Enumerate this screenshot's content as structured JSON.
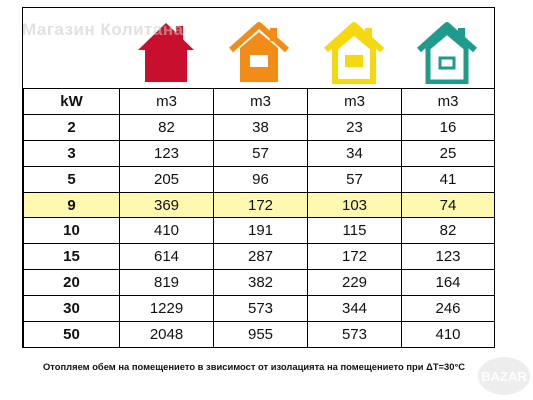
{
  "watermark": "Магазин Колитана",
  "houses": [
    {
      "name": "house-red-icon",
      "color": "#c8102e"
    },
    {
      "name": "house-orange-icon",
      "color": "#f28c18"
    },
    {
      "name": "house-yellow-icon",
      "color": "#f5d80f"
    },
    {
      "name": "house-teal-icon",
      "color": "#1e9b8a"
    }
  ],
  "table": {
    "headers": [
      "kW",
      "m3",
      "m3",
      "m3",
      "m3"
    ],
    "rows": [
      [
        "2",
        "82",
        "38",
        "23",
        "16"
      ],
      [
        "3",
        "123",
        "57",
        "34",
        "25"
      ],
      [
        "5",
        "205",
        "96",
        "57",
        "41"
      ],
      [
        "9",
        "369",
        "172",
        "103",
        "74"
      ],
      [
        "10",
        "410",
        "191",
        "115",
        "82"
      ],
      [
        "15",
        "614",
        "287",
        "172",
        "123"
      ],
      [
        "20",
        "819",
        "382",
        "229",
        "164"
      ],
      [
        "30",
        "1229",
        "573",
        "344",
        "246"
      ],
      [
        "50",
        "2048",
        "955",
        "573",
        "410"
      ]
    ],
    "highlight_row": 3,
    "highlight_color": "#fff8b0"
  },
  "caption": "Отопляем обем на помещението в звисимост от изолацията на помещението при ΔT=30°C",
  "badge": "BAZAR"
}
